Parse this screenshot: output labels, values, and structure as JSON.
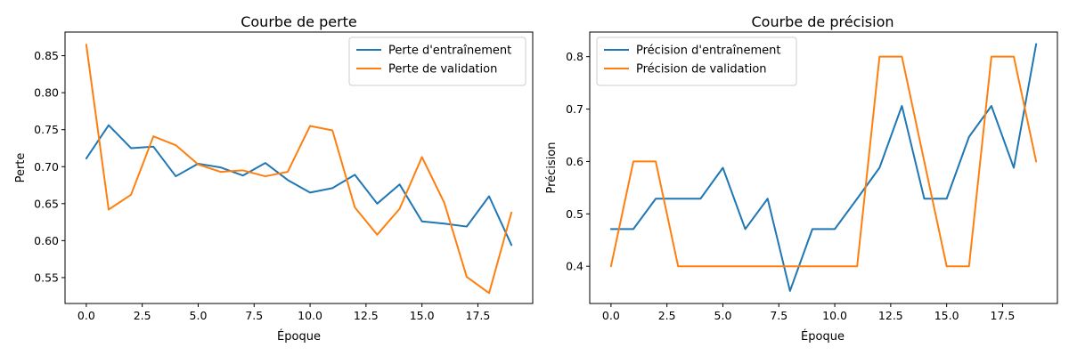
{
  "colors": {
    "series0": "#1f77b4",
    "series1": "#ff7f0e"
  },
  "chart_data": [
    {
      "type": "line",
      "title": "Courbe de perte",
      "xlabel": "Époque",
      "ylabel": "Perte",
      "xlim": [
        -0.95,
        19.95
      ],
      "ylim": [
        0.515,
        0.882
      ],
      "xticks": [
        0,
        2.5,
        5,
        7.5,
        10,
        12.5,
        15,
        17.5
      ],
      "xtick_labels": [
        "0.0",
        "2.5",
        "5.0",
        "7.5",
        "10.0",
        "12.5",
        "15.0",
        "17.5"
      ],
      "yticks": [
        0.55,
        0.6,
        0.65,
        0.7,
        0.75,
        0.8,
        0.85
      ],
      "ytick_labels": [
        "0.55",
        "0.60",
        "0.65",
        "0.70",
        "0.75",
        "0.80",
        "0.85"
      ],
      "legend_position": "top-right",
      "x": [
        0,
        1,
        2,
        3,
        4,
        5,
        6,
        7,
        8,
        9,
        10,
        11,
        12,
        13,
        14,
        15,
        16,
        17,
        18,
        19
      ],
      "series": [
        {
          "name": "Perte d'entraînement",
          "color": "#1f77b4",
          "values": [
            0.711,
            0.756,
            0.725,
            0.727,
            0.687,
            0.704,
            0.699,
            0.688,
            0.705,
            0.682,
            0.665,
            0.671,
            0.689,
            0.65,
            0.676,
            0.626,
            0.623,
            0.619,
            0.66,
            0.594
          ]
        },
        {
          "name": "Perte de validation",
          "color": "#ff7f0e",
          "values": [
            0.865,
            0.642,
            0.662,
            0.741,
            0.729,
            0.703,
            0.693,
            0.695,
            0.687,
            0.693,
            0.755,
            0.749,
            0.645,
            0.608,
            0.643,
            0.713,
            0.651,
            0.551,
            0.529,
            0.638
          ]
        }
      ]
    },
    {
      "type": "line",
      "title": "Courbe de précision",
      "xlabel": "Époque",
      "ylabel": "Précision",
      "xlim": [
        -0.95,
        19.95
      ],
      "ylim": [
        0.329,
        0.847
      ],
      "xticks": [
        0,
        2.5,
        5,
        7.5,
        10,
        12.5,
        15,
        17.5
      ],
      "xtick_labels": [
        "0.0",
        "2.5",
        "5.0",
        "7.5",
        "10.0",
        "12.5",
        "15.0",
        "17.5"
      ],
      "yticks": [
        0.4,
        0.5,
        0.6,
        0.7,
        0.8
      ],
      "ytick_labels": [
        "0.4",
        "0.5",
        "0.6",
        "0.7",
        "0.8"
      ],
      "legend_position": "top-left",
      "x": [
        0,
        1,
        2,
        3,
        4,
        5,
        6,
        7,
        8,
        9,
        10,
        11,
        12,
        13,
        14,
        15,
        16,
        17,
        18,
        19
      ],
      "series": [
        {
          "name": "Précision d'entraînement",
          "color": "#1f77b4",
          "values": [
            0.471,
            0.471,
            0.529,
            0.529,
            0.529,
            0.588,
            0.471,
            0.529,
            0.353,
            0.471,
            0.471,
            0.529,
            0.588,
            0.706,
            0.529,
            0.529,
            0.647,
            0.706,
            0.588,
            0.824
          ]
        },
        {
          "name": "Précision de validation",
          "color": "#ff7f0e",
          "values": [
            0.4,
            0.6,
            0.6,
            0.4,
            0.4,
            0.4,
            0.4,
            0.4,
            0.4,
            0.4,
            0.4,
            0.4,
            0.8,
            0.8,
            0.6,
            0.4,
            0.4,
            0.8,
            0.8,
            0.6
          ]
        }
      ]
    }
  ]
}
